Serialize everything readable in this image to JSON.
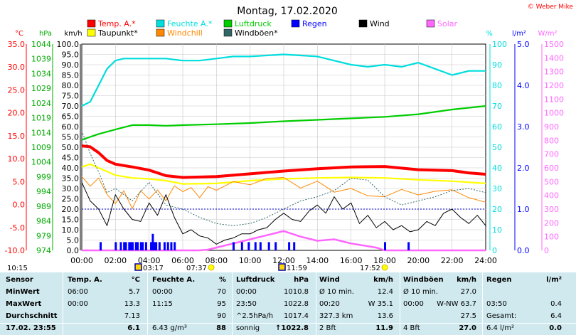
{
  "chart_data": {
    "type": "line",
    "title": "Montag, 17.02.2020",
    "copyright": "© Weber Mike",
    "axes": {
      "celsius": {
        "unit": "°C",
        "color": "#ff0000",
        "range": [
          -10,
          35
        ],
        "ticks": [
          "35.0",
          "30.0",
          "25.0",
          "20.0",
          "15.0",
          "10.0",
          "5.0",
          "0.0",
          "-5.0",
          "-10.0"
        ]
      },
      "hpa": {
        "unit": "hPa",
        "color": "#00aa00",
        "range": [
          974,
          1044
        ],
        "ticks": [
          "1044",
          "1039",
          "1034",
          "1029",
          "1024",
          "1019",
          "1014",
          "1009",
          "1004",
          "999",
          "994",
          "989",
          "984",
          "979",
          "974"
        ]
      },
      "kmh": {
        "unit": "km/h",
        "color": "#000000",
        "range": [
          0,
          100
        ],
        "ticks": [
          "100.0",
          "95.0",
          "90.0",
          "85.0",
          "80.0",
          "75.0",
          "70.0",
          "65.0",
          "60.0",
          "55.0",
          "50.0",
          "45.0",
          "40.0",
          "35.0",
          "30.0",
          "25.0",
          "20.0",
          "15.0",
          "10.0",
          "5.0",
          "0.0"
        ]
      },
      "percent": {
        "unit": "%",
        "color": "#00dddd",
        "range": [
          0,
          100
        ],
        "ticks": [
          "100",
          "90",
          "80",
          "70",
          "60",
          "50",
          "40",
          "30",
          "20",
          "10",
          "0"
        ]
      },
      "lm2": {
        "unit": "l/m²",
        "color": "#0000ff",
        "range": [
          0,
          5
        ],
        "ticks": [
          "5.0",
          "4.0",
          "3.0",
          "2.0",
          "1.0",
          "0.0"
        ]
      },
      "wm2": {
        "unit": "W/m²",
        "color": "#ff66ff",
        "range": [
          0,
          1500
        ],
        "ticks": [
          "1500",
          "1400",
          "1300",
          "1200",
          "1100",
          "1000",
          "900",
          "800",
          "700",
          "600",
          "500",
          "400",
          "300",
          "200",
          "100",
          "0"
        ]
      }
    },
    "x_ticks": [
      "00:00",
      "02:00",
      "04:00",
      "06:00",
      "08:00",
      "10:00",
      "12:00",
      "14:00",
      "16:00",
      "18:00",
      "20:00",
      "22:00",
      "24:00"
    ],
    "xlim": [
      0,
      24
    ],
    "legend": [
      {
        "label": "Temp. A.*",
        "color": "#ff0000"
      },
      {
        "label": "Feuchte A.*",
        "color": "#00dddd"
      },
      {
        "label": "Luftdruck",
        "color": "#00cc00"
      },
      {
        "label": "Regen",
        "color": "#0000ff"
      },
      {
        "label": "Wind",
        "color": "#000000"
      },
      {
        "label": "Solar",
        "color": "#ff66ff"
      },
      {
        "label": "Taupunkt*",
        "color": "#ffff00"
      },
      {
        "label": "Windchill",
        "color": "#ff8800"
      },
      {
        "label": "Windböen*",
        "color": "#336666"
      }
    ],
    "series": [
      {
        "name": "Temp. A.*",
        "color": "#ff0000",
        "axis": "celsius",
        "x": [
          0,
          0.5,
          1,
          1.5,
          2,
          2.5,
          3,
          4,
          5,
          6,
          7,
          8,
          10,
          12,
          14,
          16,
          18,
          20,
          22,
          23,
          24
        ],
        "y": [
          12.8,
          12.6,
          11.3,
          9.6,
          8.8,
          8.5,
          8.2,
          7.5,
          6.3,
          5.9,
          6.0,
          6.1,
          6.7,
          7.3,
          7.8,
          8.2,
          8.3,
          7.6,
          7.4,
          6.9,
          6.6
        ]
      },
      {
        "name": "Feuchte A.*",
        "color": "#00dddd",
        "axis": "percent",
        "x": [
          0,
          0.5,
          1,
          1.5,
          2,
          2.5,
          3,
          4,
          5,
          6,
          7,
          8,
          9,
          10,
          12,
          14,
          16,
          17,
          18,
          19,
          20,
          21,
          22,
          23,
          24
        ],
        "y": [
          70,
          72,
          80,
          88,
          92,
          93,
          93,
          93,
          93,
          92,
          92,
          93,
          94,
          94,
          95,
          94,
          90,
          89,
          90,
          89,
          91,
          88,
          85,
          87,
          87
        ]
      },
      {
        "name": "Luftdruck",
        "color": "#00cc00",
        "axis": "hpa",
        "x": [
          0,
          1,
          2,
          3,
          4,
          5,
          6,
          8,
          10,
          12,
          14,
          16,
          18,
          20,
          22,
          24
        ],
        "y": [
          1011.5,
          1013.5,
          1015.0,
          1016.5,
          1016.5,
          1016.3,
          1016.5,
          1016.8,
          1017.2,
          1017.8,
          1018.3,
          1018.8,
          1019.3,
          1020.2,
          1021.8,
          1023.0
        ]
      },
      {
        "name": "Taupunkt*",
        "color": "#ffff00",
        "axis": "celsius",
        "x": [
          0,
          0.5,
          1,
          2,
          3,
          4,
          5,
          6,
          8,
          10,
          12,
          14,
          16,
          18,
          20,
          22,
          24
        ],
        "y": [
          8.2,
          8.8,
          8.0,
          6.4,
          5.8,
          5.6,
          5.2,
          4.5,
          4.6,
          5.2,
          5.6,
          5.8,
          5.9,
          5.8,
          5.4,
          5.1,
          4.6
        ]
      },
      {
        "name": "Windchill",
        "color": "#ff8800",
        "axis": "celsius",
        "x": [
          0,
          0.5,
          1,
          1.5,
          2,
          2.5,
          3,
          3.5,
          4,
          4.5,
          5,
          5.5,
          6,
          6.5,
          7,
          7.5,
          8,
          9,
          10,
          11,
          12,
          13,
          14,
          15,
          16,
          17,
          18,
          19,
          20,
          21,
          22,
          23,
          24
        ],
        "y": [
          6.1,
          4.0,
          5.8,
          2.2,
          0.2,
          3.0,
          -0.9,
          3.0,
          1.2,
          3.2,
          0.8,
          4.1,
          2.8,
          3.7,
          1.5,
          3.9,
          3.1,
          5.0,
          4.3,
          5.7,
          5.9,
          3.6,
          5.1,
          2.7,
          3.5,
          1.9,
          1.7,
          3.3,
          2.1,
          2.9,
          3.2,
          1.5,
          0.5
        ]
      },
      {
        "name": "Wind",
        "color": "#000000",
        "axis": "kmh",
        "x": [
          0,
          0.5,
          1,
          1.5,
          2,
          2.5,
          3,
          3.5,
          4,
          4.5,
          5,
          5.5,
          6,
          6.5,
          7,
          7.5,
          8,
          8.5,
          9,
          9.5,
          10,
          10.5,
          11,
          11.5,
          12,
          12.5,
          13,
          13.5,
          14,
          14.5,
          15,
          15.5,
          16,
          16.5,
          17,
          17.5,
          18,
          18.5,
          19,
          19.5,
          20,
          20.5,
          21,
          21.5,
          22,
          22.5,
          23,
          23.5,
          24
        ],
        "y": [
          33,
          24,
          20,
          12,
          27,
          20,
          15,
          14,
          23,
          17,
          27,
          16,
          8,
          10,
          7,
          6,
          3,
          5,
          6,
          8,
          8,
          10,
          11,
          15,
          18,
          15,
          14,
          19,
          22,
          18,
          26,
          20,
          23,
          13,
          17,
          11,
          14,
          10,
          12,
          9,
          10,
          14,
          12,
          18,
          20,
          16,
          13,
          17,
          12
        ]
      },
      {
        "name": "Windböen*",
        "color": "#336666",
        "axis": "kmh",
        "x": [
          0,
          0.5,
          1,
          1.5,
          2,
          2.5,
          3,
          4,
          5,
          6,
          7,
          8,
          9,
          10,
          11,
          12,
          13,
          14,
          15,
          16,
          17,
          18,
          19,
          20,
          21,
          22,
          23,
          24
        ],
        "y": [
          58,
          47,
          38,
          28,
          30,
          27,
          24,
          33,
          22,
          20,
          16,
          13,
          12,
          13,
          16,
          20,
          24,
          26,
          29,
          35,
          34,
          26,
          22,
          24,
          26,
          29,
          30,
          28
        ]
      },
      {
        "name": "Solar",
        "color": "#ff66ff",
        "axis": "wm2",
        "x": [
          0,
          7,
          7.5,
          8,
          9,
          10,
          11,
          12,
          13,
          14,
          15,
          16,
          17,
          17.5,
          18,
          24
        ],
        "y": [
          0,
          0,
          5,
          20,
          50,
          80,
          110,
          140,
          100,
          70,
          80,
          50,
          30,
          20,
          0,
          0
        ]
      },
      {
        "name": "Regen",
        "color": "#0000ff",
        "axis": "lm2",
        "type": "bar",
        "x": [
          1.1,
          2.0,
          2.3,
          2.5,
          2.6,
          2.8,
          2.9,
          3.0,
          3.2,
          3.3,
          3.5,
          3.6,
          3.8,
          4.1,
          4.2,
          4.3,
          4.4,
          4.6,
          4.9,
          5.1,
          5.3,
          5.5,
          9.0,
          9.5,
          9.9,
          10.3,
          10.6,
          11.1,
          11.5,
          12.3,
          12.6,
          18.0,
          19.4
        ],
        "y": [
          0.2,
          0.2,
          0.2,
          0.2,
          0.2,
          0.2,
          0.2,
          0.2,
          0.2,
          0.2,
          0.2,
          0.2,
          0.2,
          0.2,
          0.4,
          0.2,
          0.2,
          0.2,
          0.2,
          0.2,
          0.2,
          0.2,
          0.2,
          0.2,
          0.2,
          0.2,
          0.2,
          0.2,
          0.2,
          0.2,
          0.2,
          0.2,
          0.2
        ]
      }
    ],
    "dew_line_kmh": 20,
    "events": [
      {
        "time": "10:15",
        "symbol": "none"
      },
      {
        "time": "03:17",
        "symbol": "moon"
      },
      {
        "time": "07:37",
        "symbol": "sun"
      },
      {
        "time": "11:59",
        "symbol": "moon"
      },
      {
        "time": "17:52",
        "symbol": "sun"
      }
    ]
  },
  "stats": {
    "headers": [
      "Sensor",
      "Temp. A.",
      "°C",
      "Feuchte A.",
      "%",
      "Luftdruck",
      "hPa",
      "Wind",
      "km/h",
      "Windböen",
      "km/h",
      "Regen",
      "l/m²"
    ],
    "rows": [
      [
        "MinWert",
        "06:00",
        "5.7",
        "00:00",
        "70",
        "00:00",
        "1010.8",
        "Ø 10 min.",
        "12.4",
        "Ø 10 min.",
        "27.0",
        "",
        ""
      ],
      [
        "MaxWert",
        "00:00",
        "13.3",
        "11:15",
        "95",
        "23:50",
        "1022.8",
        "00:20",
        "W 35.1",
        "00:00",
        "W-NW 63.7",
        "03:50",
        "0.4"
      ],
      [
        "Durchschnitt",
        "",
        "7.13",
        "",
        "90",
        "^2.5hPa/h",
        "1017.4",
        "327.3 km",
        "13.6",
        "",
        "27.5",
        "Gesamt:",
        "6.4"
      ],
      [
        "17.02. 23:55",
        "",
        "6.1",
        "6.43 g/m³",
        "88",
        "sonnig",
        "↑1022.8",
        "2 Bft",
        "11.9",
        "4 Bft",
        "27.0",
        "6.4 l/m²",
        "0.0"
      ]
    ]
  }
}
